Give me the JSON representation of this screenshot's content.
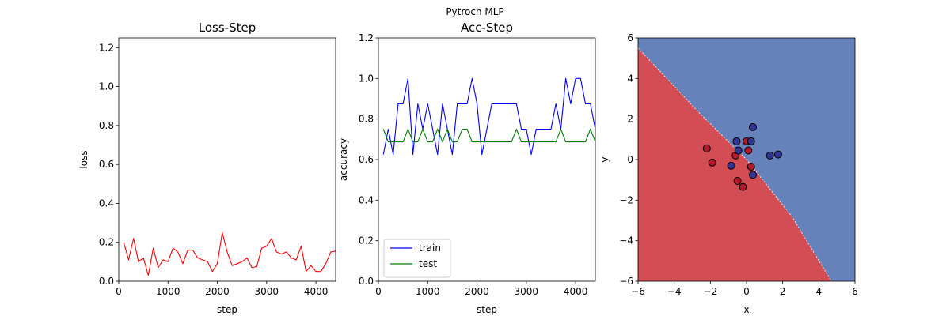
{
  "figure": {
    "suptitle": "Pytroch MLP"
  },
  "colors": {
    "loss": "#ff0000",
    "train": "#0000ff",
    "test": "#008000",
    "region_red": "#d24e54",
    "region_blue": "#6682bb",
    "point_red": "#b2182b",
    "point_blue": "#313695"
  },
  "chart_data": [
    {
      "type": "line",
      "title": "Loss-Step",
      "xlabel": "step",
      "ylabel": "loss",
      "xlim": [
        0,
        4400
      ],
      "ylim": [
        0,
        1.25
      ],
      "xticks": [
        0,
        1000,
        2000,
        3000,
        4000
      ],
      "yticks": [
        0.0,
        0.2,
        0.4,
        0.6,
        0.8,
        1.0,
        1.2
      ],
      "grid": false,
      "series": [
        {
          "color": "#ff0000",
          "x": [
            100,
            200,
            300,
            400,
            500,
            600,
            700,
            800,
            900,
            1000,
            1100,
            1200,
            1300,
            1400,
            1500,
            1600,
            1700,
            1800,
            1900,
            2000,
            2100,
            2200,
            2300,
            2400,
            2500,
            2600,
            2700,
            2800,
            2900,
            3000,
            3100,
            3200,
            3300,
            3400,
            3500,
            3600,
            3700,
            3800,
            3900,
            4000,
            4100,
            4200,
            4300,
            4400
          ],
          "y": [
            0.2,
            0.11,
            0.22,
            0.1,
            0.12,
            0.03,
            0.17,
            0.07,
            0.11,
            0.1,
            0.17,
            0.15,
            0.09,
            0.16,
            0.16,
            0.12,
            0.11,
            0.1,
            0.05,
            0.09,
            0.25,
            0.15,
            0.08,
            0.09,
            0.1,
            0.12,
            0.07,
            0.075,
            0.17,
            0.18,
            0.22,
            0.15,
            0.14,
            0.15,
            0.12,
            0.11,
            0.18,
            0.05,
            0.08,
            0.05,
            0.05,
            0.09,
            0.15,
            0.155
          ]
        }
      ]
    },
    {
      "type": "line",
      "title": "Acc-Step",
      "xlabel": "step",
      "ylabel": "accuracy",
      "xlim": [
        0,
        4400
      ],
      "ylim": [
        0,
        1.2
      ],
      "xticks": [
        0,
        1000,
        2000,
        3000,
        4000
      ],
      "yticks": [
        0.0,
        0.2,
        0.4,
        0.6,
        0.8,
        1.0,
        1.2
      ],
      "grid": false,
      "legend": "lower-left",
      "series": [
        {
          "name": "train",
          "color": "#0000ff",
          "x": [
            100,
            200,
            300,
            400,
            500,
            600,
            700,
            800,
            900,
            1000,
            1100,
            1200,
            1300,
            1400,
            1500,
            1600,
            1700,
            1800,
            1900,
            2000,
            2100,
            2200,
            2300,
            2400,
            2500,
            2600,
            2700,
            2800,
            2900,
            3000,
            3100,
            3200,
            3300,
            3400,
            3500,
            3600,
            3700,
            3800,
            3900,
            4000,
            4100,
            4200,
            4300,
            4400
          ],
          "y": [
            0.625,
            0.75,
            0.625,
            0.875,
            0.875,
            1.0,
            0.625,
            0.875,
            0.75,
            0.875,
            0.75,
            0.625,
            0.875,
            0.75,
            0.625,
            0.875,
            0.875,
            0.875,
            1.0,
            0.875,
            0.625,
            0.75,
            0.875,
            0.875,
            0.875,
            0.875,
            0.875,
            0.875,
            0.75,
            0.75,
            0.625,
            0.75,
            0.75,
            0.75,
            0.75,
            0.875,
            0.75,
            1.0,
            0.875,
            1.0,
            1.0,
            0.875,
            0.875,
            0.75
          ]
        },
        {
          "name": "test",
          "color": "#008000",
          "x": [
            100,
            200,
            300,
            400,
            500,
            600,
            700,
            800,
            900,
            1000,
            1100,
            1200,
            1300,
            1400,
            1500,
            1600,
            1700,
            1800,
            1900,
            2000,
            2100,
            2200,
            2300,
            2400,
            2500,
            2600,
            2700,
            2800,
            2900,
            3000,
            3100,
            3200,
            3300,
            3400,
            3500,
            3600,
            3700,
            3800,
            3900,
            4000,
            4100,
            4200,
            4300,
            4400
          ],
          "y": [
            0.75,
            0.6875,
            0.6875,
            0.6875,
            0.6875,
            0.75,
            0.6875,
            0.6875,
            0.75,
            0.6875,
            0.6875,
            0.75,
            0.6875,
            0.75,
            0.6875,
            0.6875,
            0.75,
            0.75,
            0.6875,
            0.6875,
            0.6875,
            0.6875,
            0.6875,
            0.6875,
            0.6875,
            0.6875,
            0.6875,
            0.75,
            0.6875,
            0.6875,
            0.6875,
            0.6875,
            0.6875,
            0.6875,
            0.6875,
            0.6875,
            0.75,
            0.6875,
            0.6875,
            0.6875,
            0.6875,
            0.6875,
            0.75,
            0.6875
          ]
        }
      ]
    },
    {
      "type": "scatter",
      "xlabel": "x",
      "ylabel": "y",
      "xlim": [
        -6,
        6
      ],
      "ylim": [
        -6,
        6
      ],
      "xticks": [
        -6,
        -4,
        -2,
        0,
        2,
        4,
        6
      ],
      "yticks": [
        -6,
        -4,
        -2,
        0,
        2,
        4,
        6
      ],
      "grid": false,
      "decision_boundary": [
        [
          -6,
          5.5
        ],
        [
          -2.5,
          2.2
        ],
        [
          0,
          0
        ],
        [
          2.5,
          -2.8
        ],
        [
          4.7,
          -6
        ]
      ],
      "regions": {
        "below_boundary": "#d24e54",
        "above_boundary": "#6682bb"
      },
      "series": [
        {
          "color": "#b2182b",
          "points": [
            [
              -2.2,
              0.55
            ],
            [
              -1.9,
              -0.15
            ],
            [
              -0.6,
              0.2
            ],
            [
              -0.5,
              -1.05
            ],
            [
              -0.2,
              -1.35
            ],
            [
              0.0,
              0.9
            ],
            [
              0.1,
              0.45
            ],
            [
              0.25,
              -0.35
            ]
          ]
        },
        {
          "color": "#313695",
          "points": [
            [
              -0.55,
              0.9
            ],
            [
              -0.45,
              0.45
            ],
            [
              -0.85,
              -0.3
            ],
            [
              0.25,
              0.9
            ],
            [
              0.35,
              1.6
            ],
            [
              0.35,
              -0.75
            ],
            [
              1.3,
              0.2
            ],
            [
              1.75,
              0.25
            ]
          ]
        }
      ]
    }
  ]
}
